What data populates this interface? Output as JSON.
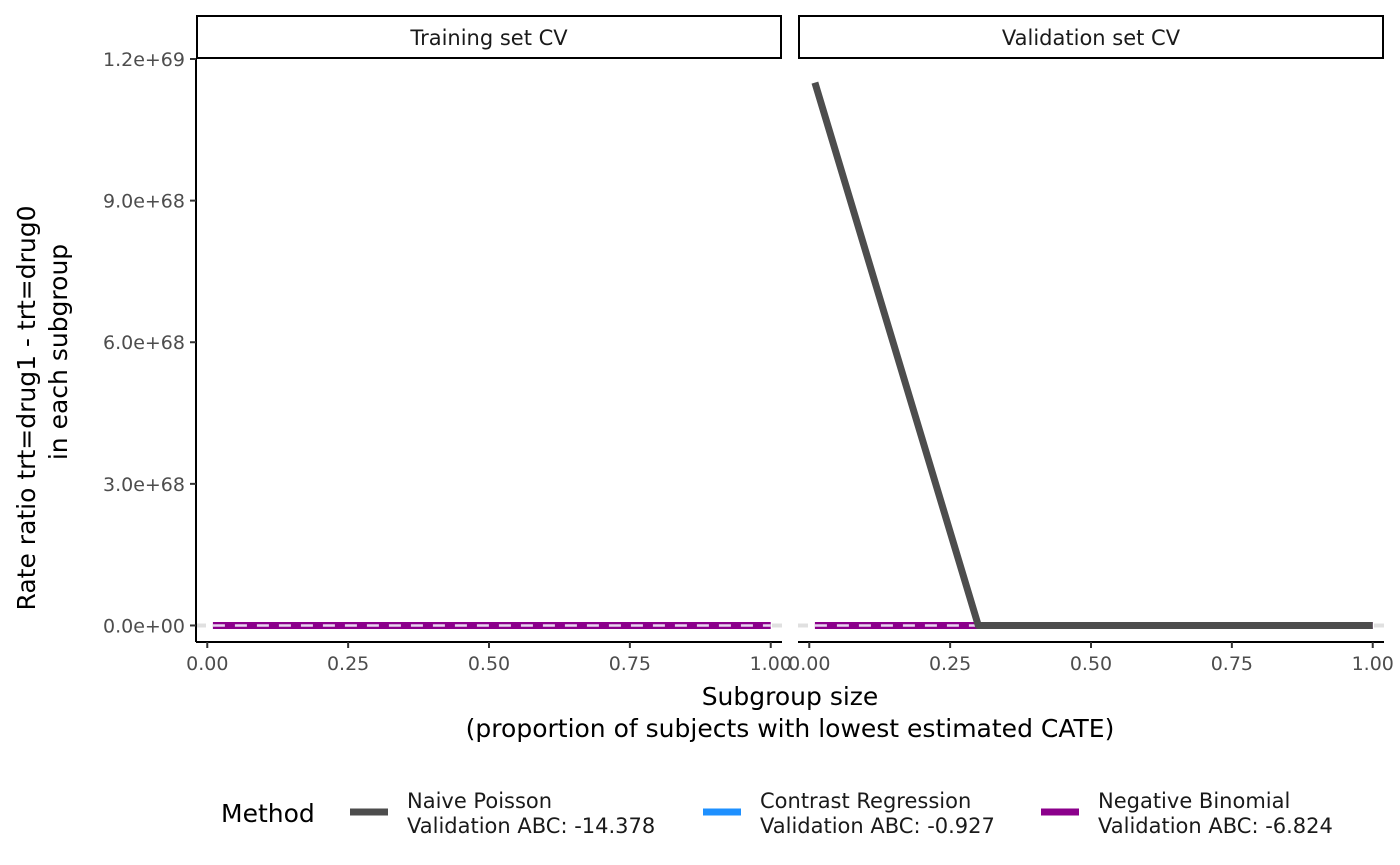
{
  "chart_data": {
    "type": "line",
    "facets": [
      "Training set CV",
      "Validation set CV"
    ],
    "xlabel": [
      "Subgroup size",
      "(proportion of subjects with lowest estimated CATE)"
    ],
    "ylabel": [
      "Rate ratio trt=drug1 - trt=drug0",
      "in each subgroup"
    ],
    "xlim": [
      -0.02,
      1.02
    ],
    "ylim": [
      -3.5e+67,
      1.2e+69
    ],
    "x_ticks": [
      0,
      0.25,
      0.5,
      0.75,
      1.0
    ],
    "x_tick_labels": [
      "0.00",
      "0.25",
      "0.50",
      "0.75",
      "1.00"
    ],
    "y_ticks": [
      0,
      3e+68,
      6e+68,
      9e+68,
      1.2e+69
    ],
    "y_tick_labels": [
      "0.0e+00",
      "3.0e+68",
      "6.0e+68",
      "9.0e+68",
      "1.2e+69"
    ],
    "reference_line": {
      "y": 0,
      "style": "dashed",
      "color": "#e0e0e0"
    },
    "legend": {
      "title": "Method",
      "position": "bottom",
      "entries": [
        {
          "line1": "Naive Poisson",
          "line2": "Validation ABC: -14.378",
          "color": "#4d4d4d"
        },
        {
          "line1": "Contrast Regression",
          "line2": "Validation ABC: -0.927",
          "color": "#1e90ff"
        },
        {
          "line1": "Negative Binomial",
          "line2": "Validation ABC: -6.824",
          "color": "#8b008b"
        }
      ]
    },
    "series": [
      {
        "name": "Negative Binomial",
        "color": "#8b008b",
        "panels": [
          {
            "x": [
              0.01,
              1.0
            ],
            "y": [
              0,
              0
            ]
          },
          {
            "x": [
              0.01,
              1.0
            ],
            "y": [
              0,
              0
            ]
          }
        ]
      },
      {
        "name": "Naive Poisson",
        "color": "#4d4d4d",
        "panels": [
          {
            "x": [],
            "y": []
          },
          {
            "x": [
              0.01,
              0.3,
              1.0
            ],
            "y": [
              1.15e+69,
              0,
              0
            ]
          }
        ]
      }
    ]
  }
}
